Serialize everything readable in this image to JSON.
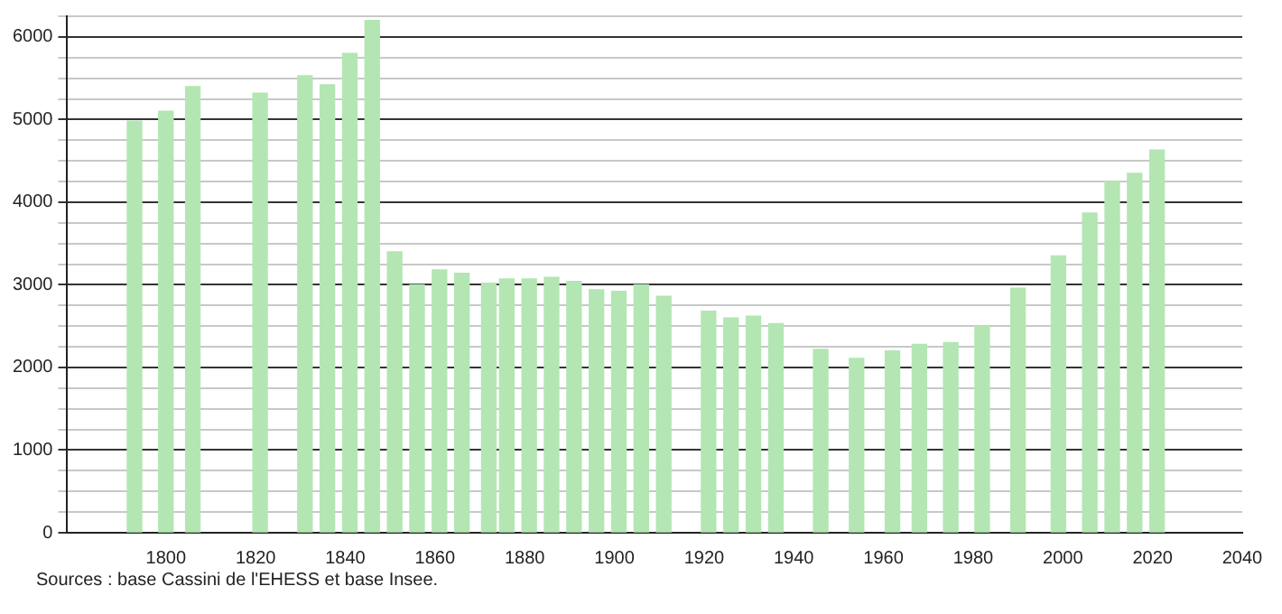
{
  "chart_data": {
    "type": "bar",
    "x": [
      1793,
      1800,
      1806,
      1821,
      1831,
      1836,
      1841,
      1846,
      1851,
      1856,
      1861,
      1866,
      1872,
      1876,
      1881,
      1886,
      1891,
      1896,
      1901,
      1906,
      1911,
      1921,
      1926,
      1931,
      1936,
      1946,
      1954,
      1962,
      1968,
      1975,
      1982,
      1990,
      1999,
      2006,
      2011,
      2016,
      2021
    ],
    "values": [
      4980,
      5100,
      5400,
      5320,
      5530,
      5420,
      5800,
      6200,
      3400,
      3000,
      3180,
      3140,
      3020,
      3070,
      3070,
      3090,
      3040,
      2940,
      2920,
      3000,
      2860,
      2680,
      2600,
      2620,
      2530,
      2220,
      2110,
      2200,
      2280,
      2300,
      2500,
      2960,
      3350,
      3870,
      4250,
      4350,
      4630
    ],
    "color": "#b3e6b3",
    "xlim": [
      1778,
      2040
    ],
    "xticks": [
      1800,
      1820,
      1840,
      1860,
      1880,
      1900,
      1920,
      1940,
      1960,
      1980,
      2000,
      2020,
      2040
    ],
    "ylim": [
      0,
      6250
    ],
    "yticks": [
      0,
      {
        "value": 250,
        "label": null
      },
      {
        "value": 500,
        "label": null
      },
      {
        "value": 750,
        "label": null
      },
      1000,
      {
        "value": 1250,
        "label": null
      },
      {
        "value": 1500,
        "label": null
      },
      {
        "value": 1750,
        "label": null
      },
      2000,
      {
        "value": 2250,
        "label": null
      },
      {
        "value": 2500,
        "label": null
      },
      {
        "value": 2750,
        "label": null
      },
      3000,
      {
        "value": 3250,
        "label": null
      },
      {
        "value": 3500,
        "label": null
      },
      {
        "value": 3750,
        "label": null
      },
      4000,
      {
        "value": 4250,
        "label": null
      },
      {
        "value": 4500,
        "label": null
      },
      {
        "value": 4750,
        "label": null
      },
      5000,
      {
        "value": 5250,
        "label": null
      },
      {
        "value": 5500,
        "label": null
      },
      {
        "value": 5750,
        "label": null
      },
      6000,
      {
        "value": 6250,
        "label": null
      }
    ],
    "grid": "y",
    "legend": false,
    "annotations": [
      "Sources : base Cassini de l'EHESS et base Insee."
    ]
  }
}
